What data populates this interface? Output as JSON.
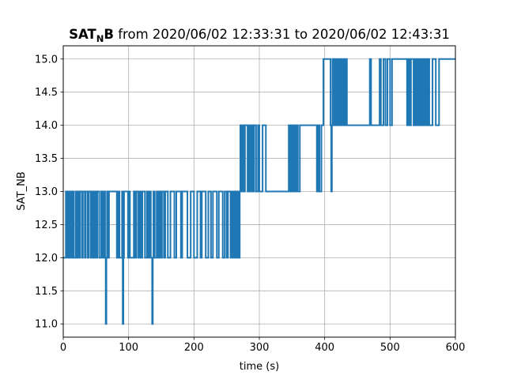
{
  "chart_data": {
    "type": "line",
    "title": {
      "main": "SAT",
      "subscript": "N",
      "main_suffix": "B",
      "rest": " from 2020/06/02 12:33:31 to 2020/06/02 12:43:31"
    },
    "xlabel": "time (s)",
    "ylabel": "SAT_NB",
    "xlim": [
      0,
      600
    ],
    "ylim": [
      10.8,
      15.2
    ],
    "xticks": [
      0,
      100,
      200,
      300,
      400,
      500,
      600
    ],
    "xtick_labels": [
      "0",
      "100",
      "200",
      "300",
      "400",
      "500",
      "600"
    ],
    "yticks": [
      11.0,
      11.5,
      12.0,
      12.5,
      13.0,
      13.5,
      14.0,
      14.5,
      15.0
    ],
    "ytick_labels": [
      "11.0",
      "11.5",
      "12.0",
      "12.5",
      "13.0",
      "13.5",
      "14.0",
      "14.5",
      "15.0"
    ],
    "grid": true,
    "series_color": "#1f77b4",
    "series": [
      {
        "x": [
          0,
          4,
          6,
          8,
          9,
          11,
          13,
          15,
          16,
          19,
          20,
          22,
          24,
          26,
          29,
          30,
          33,
          34,
          37,
          39,
          42,
          44,
          46,
          48,
          50,
          52,
          55,
          58,
          60,
          62,
          64,
          65,
          66,
          67,
          68,
          70,
          82,
          84,
          86,
          90,
          91,
          92,
          93,
          99,
          100,
          102,
          108,
          110,
          112,
          115,
          117,
          119,
          121,
          125,
          128,
          130,
          132,
          134,
          136,
          137,
          138,
          140,
          143,
          145,
          147,
          149,
          151,
          154,
          156,
          160,
          164,
          170,
          173,
          180,
          182,
          190,
          195,
          200,
          205,
          210,
          212,
          218,
          222,
          226,
          229,
          235,
          238,
          244,
          247,
          250,
          252,
          256,
          258,
          260,
          262,
          264,
          266,
          268,
          270,
          271,
          272,
          274,
          276,
          278,
          282,
          284,
          286,
          288,
          290,
          292,
          295,
          298,
          300,
          305,
          310,
          345,
          347,
          349,
          351,
          353,
          355,
          357,
          359,
          362,
          388,
          390,
          392,
          395,
          398,
          409,
          410,
          411,
          412,
          414,
          416,
          418,
          420,
          422,
          424,
          426,
          428,
          430,
          432,
          434,
          469,
          471,
          484,
          486,
          490,
          493,
          496,
          500,
          503,
          526,
          528,
          530,
          532,
          536,
          538,
          540,
          542,
          544,
          546,
          548,
          550,
          552,
          554,
          556,
          558,
          560,
          565,
          570,
          575,
          600
        ],
        "y": [
          12,
          13,
          12,
          13,
          12,
          13,
          12,
          13,
          12,
          13,
          12,
          13,
          12,
          13,
          12,
          13,
          12,
          13,
          12,
          13,
          12,
          13,
          12,
          13,
          12,
          13,
          12,
          13,
          12,
          13,
          12,
          11,
          12,
          13,
          12,
          13,
          12,
          13,
          12,
          13,
          11,
          12,
          13,
          12,
          13,
          12,
          13,
          12,
          13,
          12,
          13,
          12,
          13,
          12,
          13,
          12,
          13,
          12,
          11,
          12,
          13,
          12,
          13,
          12,
          13,
          12,
          13,
          12,
          13,
          12,
          13,
          12,
          13,
          12,
          13,
          12,
          13,
          12,
          13,
          12,
          13,
          12,
          13,
          12,
          13,
          12,
          13,
          12,
          13,
          12,
          13,
          12,
          13,
          12,
          13,
          12,
          13,
          12,
          13,
          14,
          13,
          14,
          13,
          14,
          13,
          14,
          13,
          14,
          13,
          14,
          13,
          14,
          13,
          14,
          13,
          14,
          13,
          14,
          13,
          14,
          13,
          14,
          13,
          14,
          13,
          14,
          13,
          14,
          15,
          14,
          13,
          14,
          15,
          14,
          15,
          14,
          15,
          14,
          15,
          14,
          15,
          14,
          15,
          14,
          15,
          14,
          15,
          14,
          15,
          14,
          15,
          14,
          15,
          14,
          15,
          14,
          15,
          14,
          15,
          14,
          15,
          14,
          15,
          14,
          15,
          14,
          15,
          14,
          15,
          14,
          15,
          14,
          15,
          15
        ]
      }
    ]
  }
}
